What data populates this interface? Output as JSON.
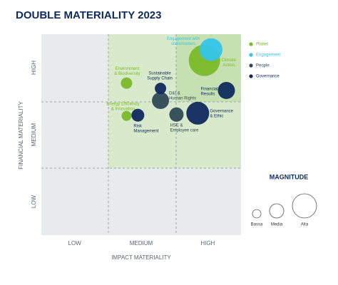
{
  "chart_data": {
    "type": "scatter",
    "title": "DOUBLE MATERIALITY 2023",
    "x_label": "IMPACT MATERIALITY",
    "y_label": "FINANCIAL MATERIALITY",
    "xlim": [
      0,
      3
    ],
    "ylim": [
      0,
      3
    ],
    "xticks": [
      {
        "value": 0.5,
        "label": "LOW"
      },
      {
        "value": 1.5,
        "label": "MEDIUM"
      },
      {
        "value": 2.5,
        "label": "HIGH"
      }
    ],
    "yticks": [
      {
        "value": 0.5,
        "label": "LOW"
      },
      {
        "value": 1.5,
        "label": "MEDIUM"
      },
      {
        "value": 2.5,
        "label": "HIGH"
      }
    ],
    "series": [
      {
        "name": "Planet",
        "color": "#7ab929",
        "x": [
          2.45,
          1.28,
          1.28
        ],
        "values": [
          2.61,
          2.27,
          1.78
        ],
        "sizes": [
          22,
          8,
          7
        ],
        "labels": [
          [
            "Climate",
            "Action"
          ],
          [
            "Environment",
            "& Biodiversity"
          ],
          [
            "Energy Efficiency",
            "& Innovation"
          ]
        ]
      },
      {
        "name": "Engagement",
        "color": "#35c5ea",
        "x": [
          2.55
        ],
        "values": [
          2.77
        ],
        "sizes": [
          16
        ],
        "labels": [
          [
            "Engagement with",
            "stakeholders"
          ]
        ]
      },
      {
        "name": "People",
        "color": "#2f4a56",
        "x": [
          1.79,
          2.03
        ],
        "values": [
          2.01,
          1.8
        ],
        "sizes": [
          12,
          10
        ],
        "labels": [
          [
            "D&I &",
            "Human Rights"
          ],
          [
            "HSE &",
            "Employee care"
          ]
        ]
      },
      {
        "name": "Governance",
        "color": "#0f2a5c",
        "x": [
          1.79,
          2.78,
          1.45,
          2.35
        ],
        "values": [
          2.19,
          2.16,
          1.79,
          1.82
        ],
        "sizes": [
          8,
          12,
          9,
          16
        ],
        "labels": [
          [
            "Sustainable",
            "Supply Chain"
          ],
          [
            "Financial",
            "Results"
          ],
          [
            "Risk",
            "Management"
          ],
          [
            "Governance",
            "& Ethic"
          ]
        ]
      }
    ],
    "magnitude": {
      "title": "MAGNITUDE",
      "items": [
        {
          "label": "Bassa",
          "size": 6
        },
        {
          "label": "Media",
          "size": 10
        },
        {
          "label": "Alta",
          "size": 17
        }
      ]
    }
  }
}
